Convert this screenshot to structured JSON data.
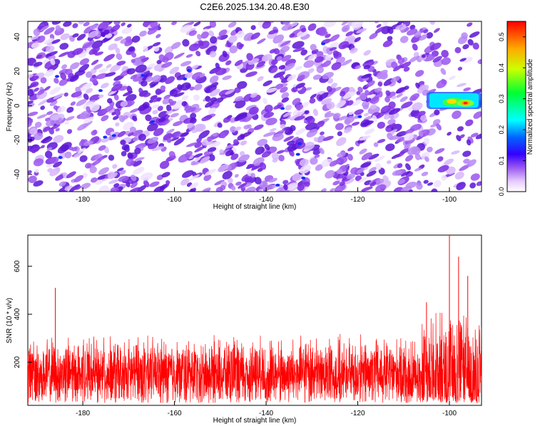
{
  "figure": {
    "title": "C2E6.2025.134.20.48.E30"
  },
  "chart_data": [
    {
      "type": "heatmap",
      "xlabel": "Height of straight line (km)",
      "ylabel": "Frequency (Hz)",
      "xlim": [
        -192,
        -93
      ],
      "ylim": [
        -50,
        49
      ],
      "x_ticks": [
        -180,
        -160,
        -140,
        -120,
        -100
      ],
      "x_tick_labels": [
        "-180",
        "-160",
        "-140",
        "-120",
        "-100"
      ],
      "y_ticks": [
        -40,
        -20,
        0,
        20,
        40
      ],
      "y_tick_labels": [
        "-40",
        "-20",
        "0",
        "20",
        "40"
      ],
      "colorbar": {
        "label": "Normalized spectral amplitude",
        "range": [
          0,
          0.55
        ],
        "ticks": [
          0,
          0.1,
          0.2,
          0.3,
          0.4,
          0.5
        ],
        "tick_labels": [
          "0.0",
          "0.1",
          "0.2",
          "0.3",
          "0.4",
          "0.5"
        ],
        "colormap": [
          "#ffffff",
          "#e7cfff",
          "#a35cf0",
          "#6a1ad8",
          "#0000ff",
          "#00ffff",
          "#00ff00",
          "#ffff00",
          "#ff0000"
        ]
      },
      "features": [
        {
          "x_range": [
            -105,
            -93
          ],
          "y_range": [
            -2,
            8
          ],
          "peak_x": -97,
          "peak_y": 2,
          "peak_value": 0.5
        }
      ],
      "background_level": 0.08,
      "grid": false
    },
    {
      "type": "line",
      "xlabel": "Height of straight line (km)",
      "ylabel": "SNR (10 * v/v)",
      "xlim": [
        -192,
        -93
      ],
      "ylim": [
        20,
        730
      ],
      "x_ticks": [
        -180,
        -160,
        -140,
        -120,
        -100
      ],
      "x_tick_labels": [
        "-180",
        "-160",
        "-140",
        "-120",
        "-100"
      ],
      "y_ticks": [
        200,
        400,
        600
      ],
      "y_tick_labels": [
        "200",
        "400",
        "600"
      ],
      "series": [
        {
          "color": "#ff0000",
          "baseline": 150,
          "typical_peak": 320,
          "notable_peaks": [
            {
              "x": -186,
              "y": 510
            },
            {
              "x": -105,
              "y": 450
            },
            {
              "x": -100,
              "y": 730
            },
            {
              "x": -98,
              "y": 640
            },
            {
              "x": -96,
              "y": 560
            }
          ]
        }
      ],
      "grid": false
    }
  ]
}
